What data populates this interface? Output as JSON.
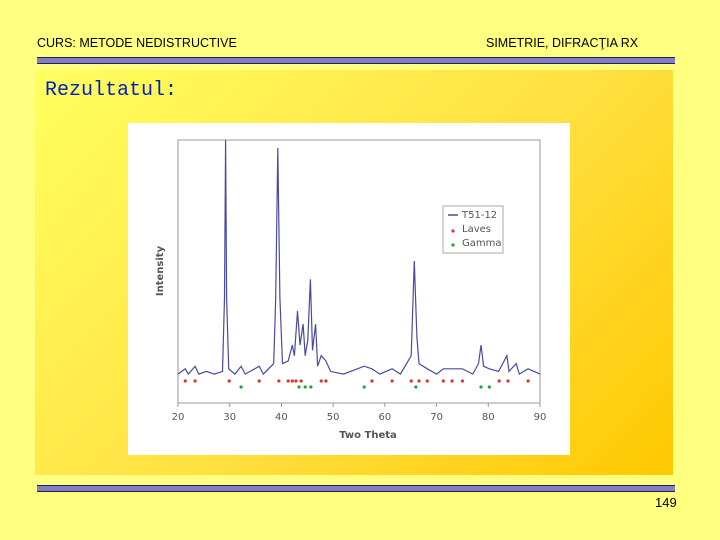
{
  "header": {
    "left": "CURS: METODE NEDISTRUCTIVE",
    "right": "SIMETRIE, DIFRACŢIA RX"
  },
  "slide_title": "Rezultatul:",
  "page_number": "149",
  "chart_data": {
    "type": "line",
    "x_label": "Two Theta",
    "y_label": "Intensity",
    "xlim": [
      20,
      90
    ],
    "xticks": [
      20,
      30,
      40,
      50,
      60,
      70,
      80,
      90
    ],
    "ylim": [
      0,
      100
    ],
    "series": [
      {
        "name": "T51-12",
        "color": "#4a4aa0",
        "x": [
          20,
          21.4,
          22,
          23.3,
          24,
          25.5,
          27,
          28.6,
          29.0,
          29.2,
          29.4,
          29.8,
          31,
          32.2,
          33,
          35.7,
          36.5,
          38.5,
          38.9,
          39.3,
          39.7,
          40.2,
          41.3,
          42.1,
          42.5,
          43.1,
          43.6,
          44.2,
          44.6,
          45.1,
          45.6,
          46.0,
          46.6,
          47.0,
          47.7,
          48.6,
          49.5,
          52,
          56,
          57.5,
          59,
          61.4,
          63,
          65.1,
          65.7,
          66.2,
          66.6,
          68.2,
          70,
          71.3,
          73,
          75,
          77,
          78.1,
          78.6,
          79.1,
          80.2,
          82,
          83.6,
          84,
          85.4,
          86,
          87.7,
          90
        ],
        "values": [
          11,
          13,
          11,
          14,
          11,
          12,
          11,
          12,
          40,
          100,
          40,
          13,
          11,
          14,
          11,
          14,
          11,
          15,
          40,
          97,
          40,
          15,
          16,
          22,
          18,
          35,
          22,
          30,
          18,
          24,
          47,
          20,
          30,
          14,
          18,
          16,
          12,
          11,
          14,
          13,
          11,
          13,
          11,
          18,
          54,
          25,
          15,
          13,
          11,
          13,
          13,
          13,
          11,
          15,
          22,
          14,
          13,
          12,
          18,
          12,
          15,
          11,
          13,
          11
        ]
      },
      {
        "name": "Laves",
        "color": "#e03030",
        "x": [
          21.4,
          23.3,
          29.9,
          35.7,
          39.5,
          41.3,
          42.1,
          42.8,
          43.8,
          47.7,
          48.6,
          57.5,
          61.4,
          65.1,
          66.6,
          68.2,
          71.3,
          73.0,
          75.0,
          82.1,
          83.8,
          87.7
        ]
      },
      {
        "name": "Gamma",
        "color": "#20a040",
        "x": [
          32.2,
          43.4,
          44.6,
          45.7,
          56.0,
          66.0,
          78.6,
          80.2
        ]
      }
    ]
  }
}
